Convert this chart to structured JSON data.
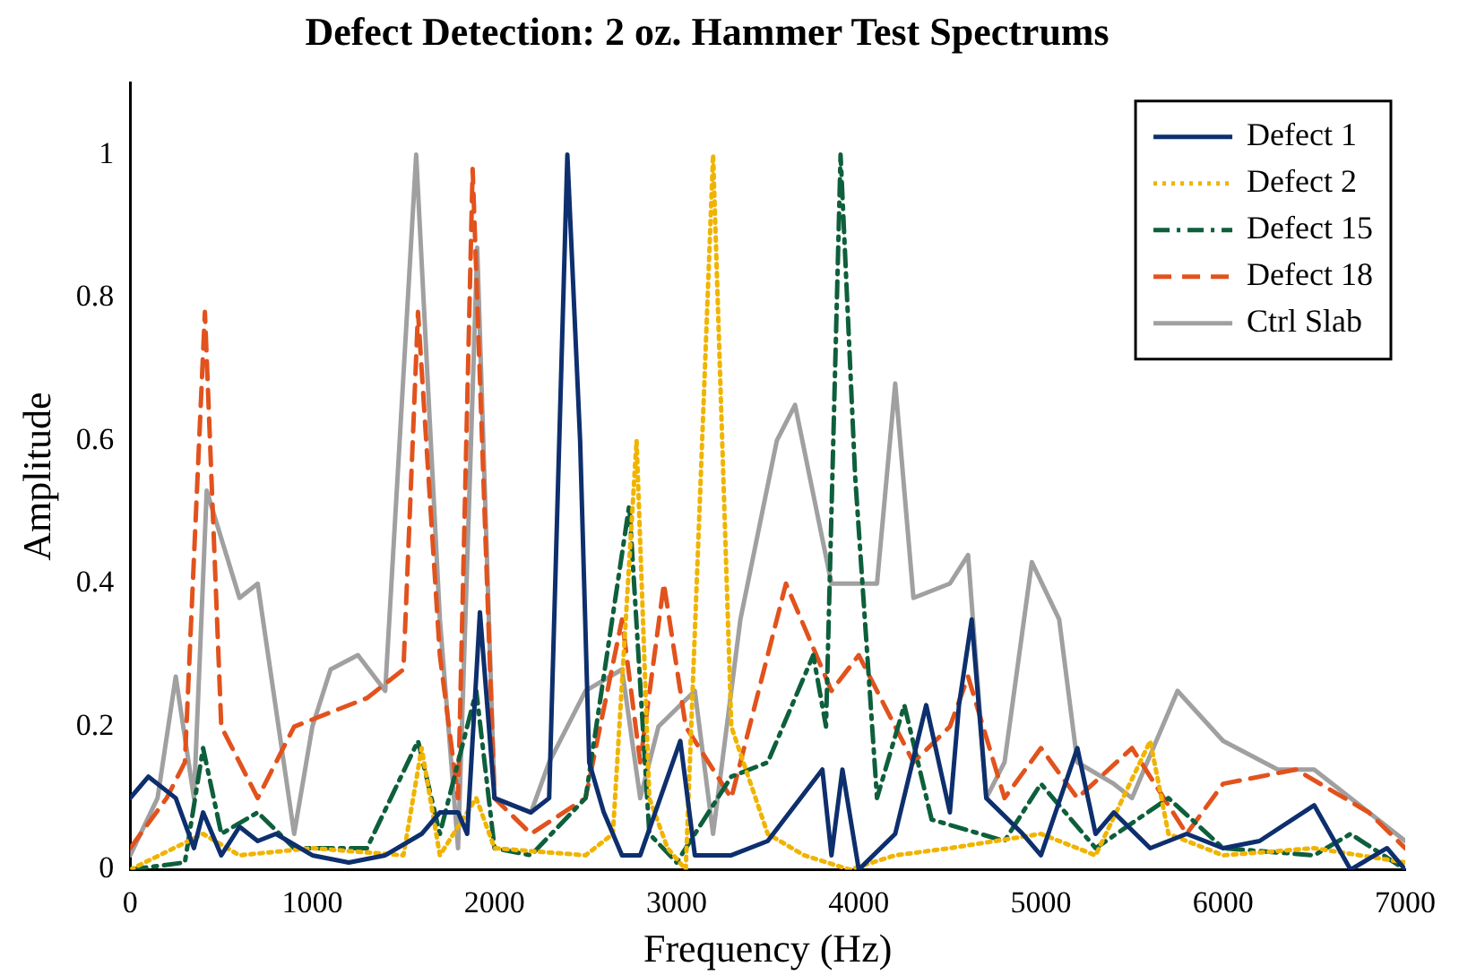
{
  "chart_data": {
    "type": "line",
    "title": "Defect Detection: 2 oz. Hammer Test Spectrums",
    "xlabel": "Frequency (Hz)",
    "ylabel": "Amplitude",
    "xlim": [
      0,
      7000
    ],
    "xticks": [
      0,
      1000,
      2000,
      3000,
      4000,
      5000,
      6000,
      7000
    ],
    "ylim": [
      0,
      1.1
    ],
    "yticks": [
      0,
      0.2,
      0.4,
      0.6,
      0.8,
      1
    ],
    "grid": false,
    "legend": "top right",
    "marker": "none",
    "series": [
      {
        "name": "Defect 1",
        "color": "#0e2f6e",
        "line_style": "solid",
        "x": [
          0,
          100,
          250,
          350,
          400,
          500,
          600,
          700,
          800,
          1000,
          1200,
          1400,
          1600,
          1700,
          1800,
          1850,
          1920,
          2000,
          2200,
          2300,
          2400,
          2470,
          2520,
          2600,
          2700,
          2800,
          3020,
          3100,
          3300,
          3500,
          3800,
          3850,
          3910,
          4000,
          4200,
          4370,
          4500,
          4550,
          4620,
          4700,
          4900,
          5000,
          5200,
          5300,
          5400,
          5600,
          5800,
          6000,
          6200,
          6500,
          6700,
          6900,
          7000
        ],
        "values": [
          0.1,
          0.13,
          0.1,
          0.03,
          0.08,
          0.02,
          0.06,
          0.04,
          0.05,
          0.02,
          0.01,
          0.02,
          0.05,
          0.08,
          0.08,
          0.05,
          0.36,
          0.1,
          0.08,
          0.1,
          1.0,
          0.6,
          0.15,
          0.08,
          0.02,
          0.02,
          0.18,
          0.02,
          0.02,
          0.04,
          0.14,
          0.02,
          0.14,
          0.0,
          0.05,
          0.23,
          0.08,
          0.23,
          0.35,
          0.1,
          0.05,
          0.02,
          0.17,
          0.05,
          0.08,
          0.03,
          0.05,
          0.03,
          0.04,
          0.09,
          0.0,
          0.03,
          0.0
        ]
      },
      {
        "name": "Defect 2",
        "color": "#f0b400",
        "line_style": "dotted",
        "x": [
          0,
          400,
          600,
          1000,
          1500,
          1600,
          1700,
          1900,
          2000,
          2500,
          2650,
          2780,
          2850,
          2950,
          3050,
          3200,
          3300,
          3500,
          3700,
          3950,
          4200,
          4500,
          5000,
          5300,
          5600,
          5700,
          6000,
          6500,
          7000
        ],
        "values": [
          0.0,
          0.05,
          0.02,
          0.03,
          0.02,
          0.17,
          0.02,
          0.1,
          0.03,
          0.02,
          0.05,
          0.6,
          0.1,
          0.03,
          0.0,
          1.0,
          0.2,
          0.05,
          0.02,
          0.0,
          0.02,
          0.03,
          0.05,
          0.02,
          0.18,
          0.05,
          0.02,
          0.03,
          0.01
        ]
      },
      {
        "name": "Defect 15",
        "color": "#0e5f3c",
        "line_style": "dashdot",
        "x": [
          0,
          300,
          400,
          500,
          700,
          900,
          1300,
          1580,
          1700,
          1900,
          2000,
          2200,
          2500,
          2740,
          2850,
          3000,
          3300,
          3500,
          3750,
          3820,
          3900,
          3980,
          4100,
          4250,
          4400,
          4800,
          5000,
          5300,
          5700,
          6000,
          6500,
          6700,
          7000
        ],
        "values": [
          0.0,
          0.01,
          0.17,
          0.05,
          0.08,
          0.03,
          0.03,
          0.18,
          0.05,
          0.25,
          0.03,
          0.02,
          0.1,
          0.51,
          0.05,
          0.01,
          0.13,
          0.15,
          0.3,
          0.2,
          1.0,
          0.55,
          0.1,
          0.23,
          0.07,
          0.04,
          0.12,
          0.03,
          0.1,
          0.03,
          0.02,
          0.05,
          0.0
        ]
      },
      {
        "name": "Defect 18",
        "color": "#e2521d",
        "line_style": "dashed",
        "x": [
          0,
          200,
          300,
          410,
          500,
          700,
          900,
          1300,
          1500,
          1580,
          1700,
          1800,
          1880,
          2000,
          2200,
          2500,
          2700,
          2800,
          2930,
          3050,
          3300,
          3600,
          3850,
          4000,
          4300,
          4500,
          4600,
          4800,
          5000,
          5200,
          5500,
          5800,
          6000,
          6400,
          6800,
          7000
        ],
        "values": [
          0.03,
          0.1,
          0.15,
          0.78,
          0.2,
          0.1,
          0.2,
          0.24,
          0.28,
          0.78,
          0.3,
          0.1,
          0.98,
          0.1,
          0.05,
          0.1,
          0.35,
          0.15,
          0.4,
          0.2,
          0.1,
          0.4,
          0.25,
          0.3,
          0.15,
          0.2,
          0.27,
          0.1,
          0.17,
          0.1,
          0.17,
          0.05,
          0.12,
          0.14,
          0.08,
          0.03
        ]
      },
      {
        "name": "Ctrl Slab",
        "color": "#a0a0a0",
        "line_style": "solid",
        "x": [
          0,
          150,
          250,
          350,
          420,
          600,
          700,
          900,
          1000,
          1100,
          1250,
          1400,
          1570,
          1700,
          1800,
          1905,
          2000,
          2200,
          2300,
          2500,
          2700,
          2800,
          2900,
          3100,
          3200,
          3350,
          3550,
          3650,
          3850,
          4100,
          4200,
          4300,
          4500,
          4600,
          4700,
          4800,
          4950,
          5100,
          5200,
          5400,
          5500,
          5750,
          6000,
          6300,
          6500,
          6800,
          7000
        ],
        "values": [
          0.02,
          0.1,
          0.27,
          0.1,
          0.53,
          0.38,
          0.4,
          0.05,
          0.2,
          0.28,
          0.3,
          0.25,
          1.0,
          0.35,
          0.03,
          0.87,
          0.1,
          0.08,
          0.15,
          0.25,
          0.28,
          0.1,
          0.2,
          0.25,
          0.05,
          0.35,
          0.6,
          0.65,
          0.4,
          0.4,
          0.68,
          0.38,
          0.4,
          0.44,
          0.1,
          0.15,
          0.43,
          0.35,
          0.15,
          0.12,
          0.1,
          0.25,
          0.18,
          0.14,
          0.14,
          0.08,
          0.04
        ]
      }
    ]
  }
}
